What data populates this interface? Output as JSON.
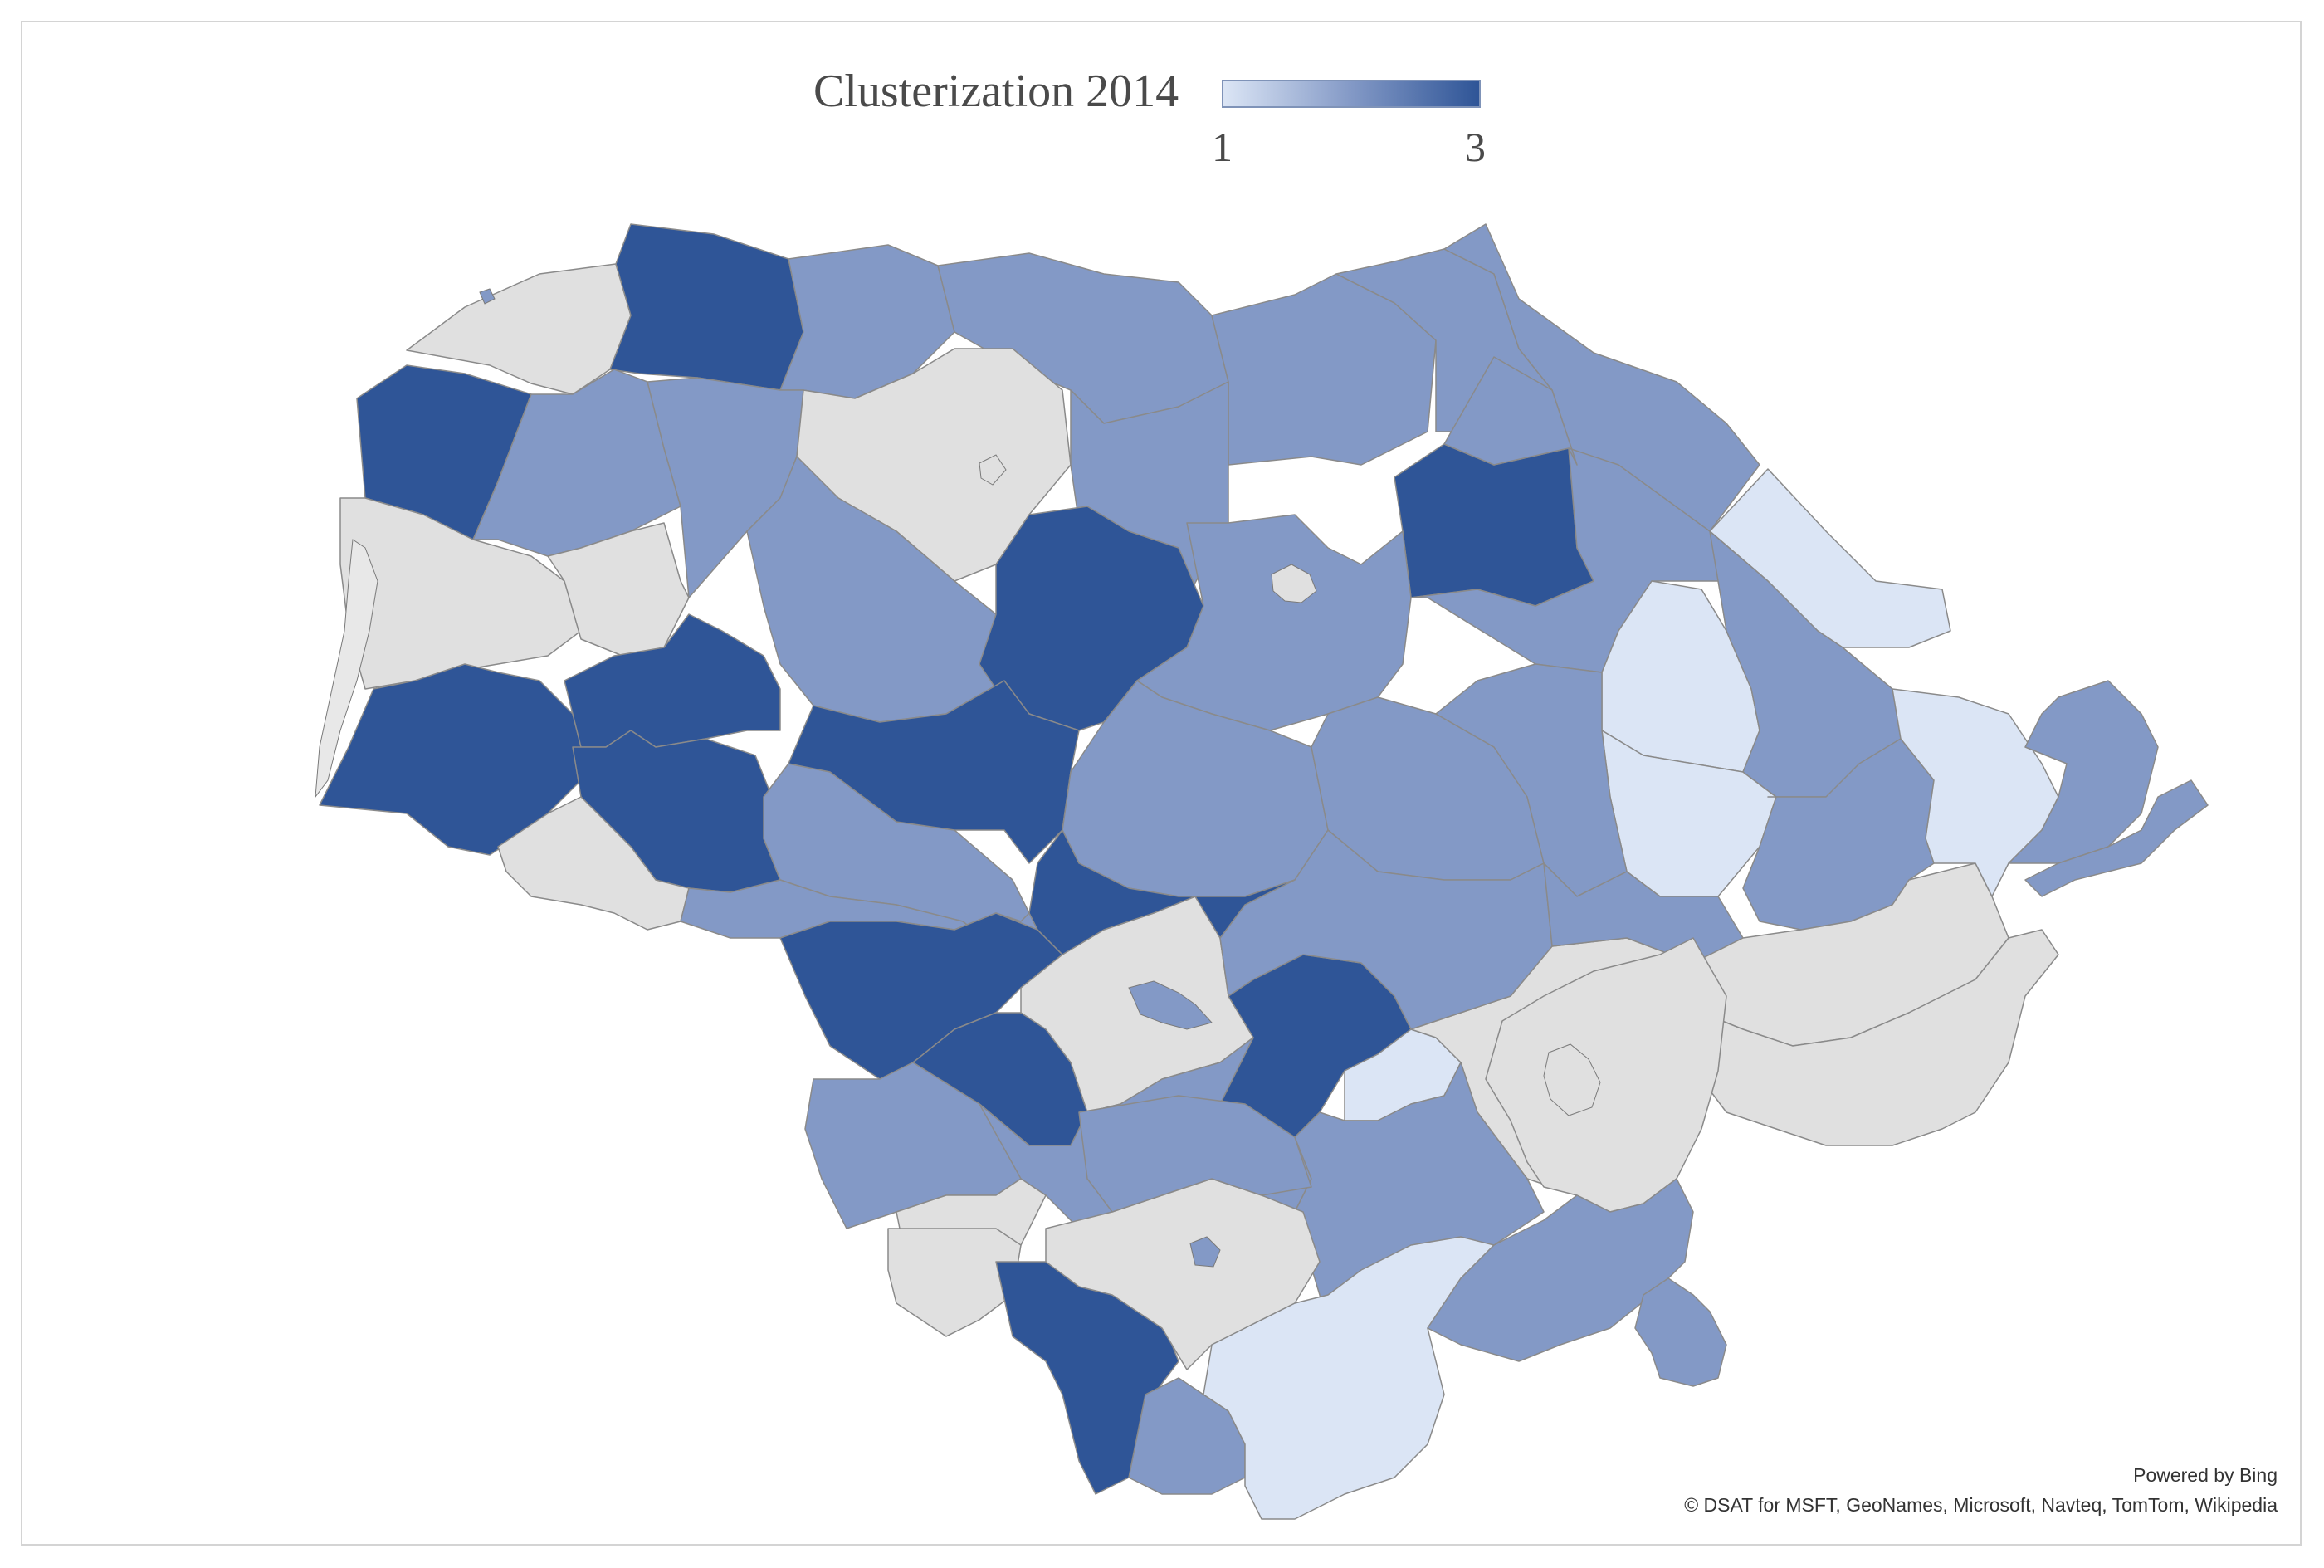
{
  "legend": {
    "title": "Clusterization 2014",
    "min_label": "1",
    "max_label": "3",
    "min_value": 1,
    "max_value": 3
  },
  "colors": {
    "no_data": "#e0e0e0",
    "cluster_1": "#dbe5f5",
    "cluster_2": "#8399c6",
    "cluster_3": "#2f5597"
  },
  "attribution": {
    "powered_by": "Powered by Bing",
    "copyright": "© DSAT for MSFT, GeoNames, Microsoft, Navteq, TomTom, Wikipedia"
  },
  "regions": [
    {
      "id": "r01",
      "value": null
    },
    {
      "id": "r02",
      "value": 3
    },
    {
      "id": "r03",
      "value": 2
    },
    {
      "id": "r04",
      "value": 2
    },
    {
      "id": "r05",
      "value": 2
    },
    {
      "id": "r06",
      "value": 2
    },
    {
      "id": "r07",
      "value": 2
    },
    {
      "id": "r08",
      "value": 3
    },
    {
      "id": "r09",
      "value": 2
    },
    {
      "id": "r10",
      "value": 2
    },
    {
      "id": "r11",
      "value": null
    },
    {
      "id": "r12",
      "value": 2
    },
    {
      "id": "r13",
      "value": 3
    },
    {
      "id": "r14",
      "value": 2
    },
    {
      "id": "r15",
      "value": 1
    },
    {
      "id": "r16",
      "value": 1
    },
    {
      "id": "r17",
      "value": null
    },
    {
      "id": "r18",
      "value": null
    },
    {
      "id": "r19",
      "value": 2
    },
    {
      "id": "r20",
      "value": 3
    },
    {
      "id": "r21",
      "value": 2
    },
    {
      "id": "r22",
      "value": 3
    },
    {
      "id": "r23",
      "value": 3
    },
    {
      "id": "r24",
      "value": 3
    },
    {
      "id": "r25",
      "value": 2
    },
    {
      "id": "r26",
      "value": 3
    },
    {
      "id": "r27",
      "value": 2
    },
    {
      "id": "r28",
      "value": 2
    },
    {
      "id": "r29",
      "value": 1
    },
    {
      "id": "r30",
      "value": 2
    },
    {
      "id": "r31",
      "value": null
    },
    {
      "id": "r32",
      "value": 2
    },
    {
      "id": "r33",
      "value": 3
    },
    {
      "id": "r34",
      "value": 3
    },
    {
      "id": "r35",
      "value": null
    },
    {
      "id": "r36",
      "value": 3
    },
    {
      "id": "r37",
      "value": 1
    },
    {
      "id": "r38",
      "value": null
    },
    {
      "id": "r39",
      "value": 2
    },
    {
      "id": "r40",
      "value": 2
    },
    {
      "id": "r41",
      "value": 2
    },
    {
      "id": "r42",
      "value": 2
    },
    {
      "id": "r43",
      "value": null
    },
    {
      "id": "r44",
      "value": null
    },
    {
      "id": "r45",
      "value": 1
    },
    {
      "id": "r46",
      "value": 2
    },
    {
      "id": "r47",
      "value": 3
    },
    {
      "id": "r48",
      "value": 2
    },
    {
      "id": "r49",
      "value": 2
    },
    {
      "id": "r50",
      "value": 2
    },
    {
      "id": "r51",
      "value": 2
    },
    {
      "id": "r52",
      "value": null
    },
    {
      "id": "r53",
      "value": 2
    }
  ]
}
